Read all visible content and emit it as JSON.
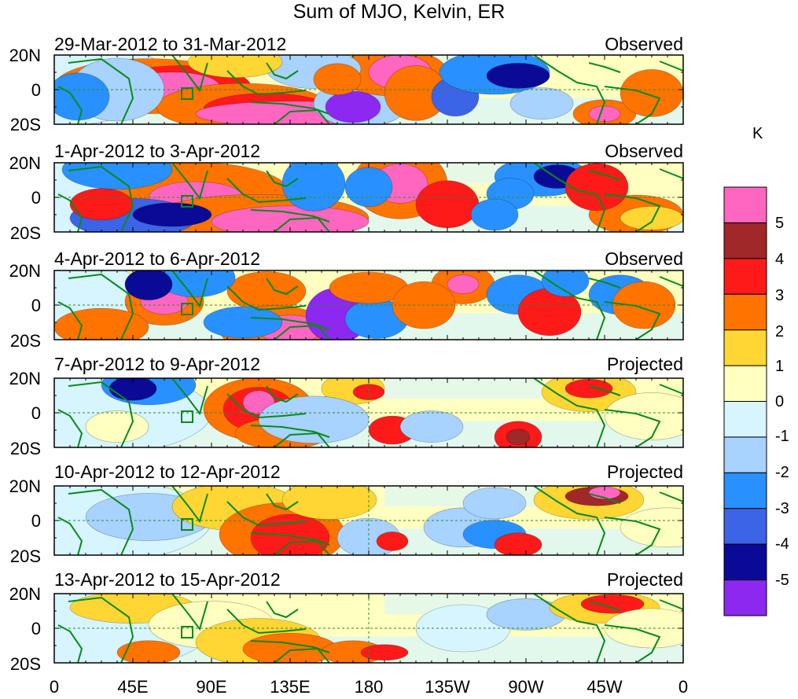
{
  "title": "Sum of MJO, Kelvin, ER",
  "panels": [
    {
      "period": "29-Mar-2012 to 31-Mar-2012",
      "status": "Observed"
    },
    {
      "period": "1-Apr-2012 to 3-Apr-2012",
      "status": "Observed"
    },
    {
      "period": "4-Apr-2012 to 6-Apr-2012",
      "status": "Observed"
    },
    {
      "period": "7-Apr-2012 to 9-Apr-2012",
      "status": "Projected"
    },
    {
      "period": "10-Apr-2012 to 12-Apr-2012",
      "status": "Projected"
    },
    {
      "period": "13-Apr-2012 to 15-Apr-2012",
      "status": "Projected"
    }
  ],
  "lat_ticks": {
    "north": "20N",
    "equator": "0",
    "south": "20S"
  },
  "lon_ticks": [
    "0",
    "45E",
    "90E",
    "135E",
    "180",
    "135W",
    "90W",
    "45W",
    "0"
  ],
  "colorbar": {
    "unit": "K",
    "labels": [
      "5",
      "4",
      "3",
      "2",
      "1",
      "0",
      "-1",
      "-2",
      "-3",
      "-4",
      "-5"
    ],
    "colors": [
      "#ff66c0",
      "#a02828",
      "#ff1a1a",
      "#ff7300",
      "#ffd633",
      "#ffffc0",
      "#d6f5ff",
      "#a8d2ff",
      "#2891ff",
      "#3c64e6",
      "#0a0a96",
      "#8c28f0"
    ]
  }
}
